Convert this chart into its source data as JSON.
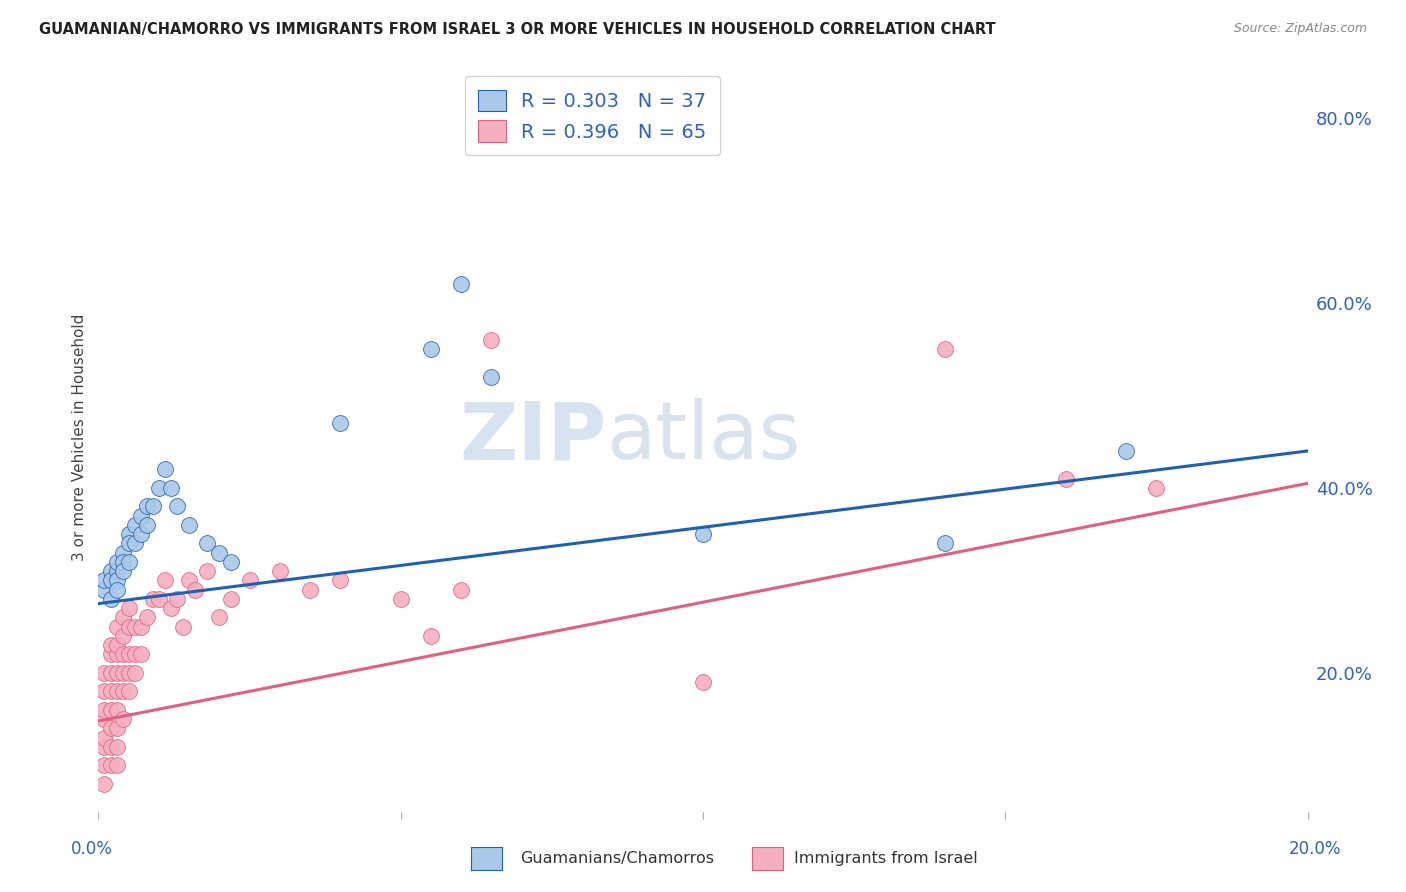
{
  "title": "GUAMANIAN/CHAMORRO VS IMMIGRANTS FROM ISRAEL 3 OR MORE VEHICLES IN HOUSEHOLD CORRELATION CHART",
  "source": "Source: ZipAtlas.com",
  "ylabel": "3 or more Vehicles in Household",
  "ytick_labels": [
    "20.0%",
    "40.0%",
    "60.0%",
    "80.0%"
  ],
  "ytick_values": [
    0.2,
    0.4,
    0.6,
    0.8
  ],
  "xmin": 0.0,
  "xmax": 0.2,
  "ymin": 0.05,
  "ymax": 0.86,
  "blue_R": 0.303,
  "blue_N": 37,
  "pink_R": 0.396,
  "pink_N": 65,
  "blue_color": "#aac8e8",
  "pink_color": "#f4b0c0",
  "blue_line_color": "#2060b0",
  "pink_line_color": "#e06080",
  "legend_text_color": "#3060c0",
  "watermark": "ZIPatlas",
  "blue_scatter_x": [
    0.001,
    0.001,
    0.002,
    0.002,
    0.002,
    0.003,
    0.003,
    0.003,
    0.003,
    0.004,
    0.004,
    0.004,
    0.005,
    0.005,
    0.005,
    0.006,
    0.006,
    0.007,
    0.007,
    0.008,
    0.008,
    0.009,
    0.01,
    0.011,
    0.012,
    0.013,
    0.015,
    0.018,
    0.02,
    0.022,
    0.04,
    0.055,
    0.06,
    0.065,
    0.1,
    0.14,
    0.17
  ],
  "blue_scatter_y": [
    0.29,
    0.3,
    0.31,
    0.3,
    0.28,
    0.31,
    0.3,
    0.32,
    0.29,
    0.33,
    0.32,
    0.31,
    0.35,
    0.34,
    0.32,
    0.36,
    0.34,
    0.37,
    0.35,
    0.38,
    0.36,
    0.38,
    0.4,
    0.42,
    0.4,
    0.38,
    0.36,
    0.34,
    0.33,
    0.32,
    0.47,
    0.55,
    0.62,
    0.52,
    0.35,
    0.34,
    0.44
  ],
  "pink_scatter_x": [
    0.001,
    0.001,
    0.001,
    0.001,
    0.001,
    0.001,
    0.001,
    0.001,
    0.002,
    0.002,
    0.002,
    0.002,
    0.002,
    0.002,
    0.002,
    0.002,
    0.003,
    0.003,
    0.003,
    0.003,
    0.003,
    0.003,
    0.003,
    0.003,
    0.003,
    0.004,
    0.004,
    0.004,
    0.004,
    0.004,
    0.004,
    0.005,
    0.005,
    0.005,
    0.005,
    0.005,
    0.006,
    0.006,
    0.006,
    0.007,
    0.007,
    0.008,
    0.009,
    0.01,
    0.011,
    0.012,
    0.013,
    0.014,
    0.015,
    0.016,
    0.018,
    0.02,
    0.022,
    0.025,
    0.03,
    0.035,
    0.04,
    0.05,
    0.055,
    0.06,
    0.065,
    0.1,
    0.14,
    0.16,
    0.175
  ],
  "pink_scatter_y": [
    0.08,
    0.1,
    0.12,
    0.13,
    0.15,
    0.16,
    0.18,
    0.2,
    0.1,
    0.12,
    0.14,
    0.16,
    0.18,
    0.2,
    0.22,
    0.23,
    0.1,
    0.12,
    0.14,
    0.16,
    0.18,
    0.2,
    0.22,
    0.23,
    0.25,
    0.15,
    0.18,
    0.2,
    0.22,
    0.24,
    0.26,
    0.18,
    0.2,
    0.22,
    0.25,
    0.27,
    0.2,
    0.22,
    0.25,
    0.22,
    0.25,
    0.26,
    0.28,
    0.28,
    0.3,
    0.27,
    0.28,
    0.25,
    0.3,
    0.29,
    0.31,
    0.26,
    0.28,
    0.3,
    0.31,
    0.29,
    0.3,
    0.28,
    0.24,
    0.29,
    0.56,
    0.19,
    0.55,
    0.41,
    0.4
  ],
  "background_color": "#ffffff",
  "grid_color": "#cccccc"
}
